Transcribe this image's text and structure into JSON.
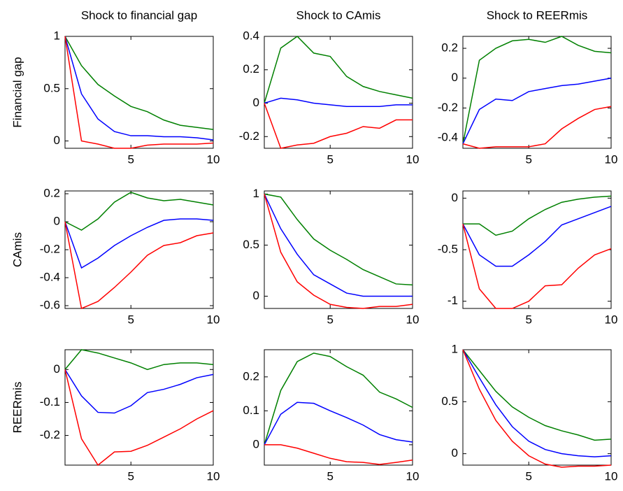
{
  "chart_data": [
    {
      "type": "line",
      "title": "Shock to financial gap",
      "ylabel": "Financial gap",
      "x": [
        1,
        2,
        3,
        4,
        5,
        6,
        7,
        8,
        9,
        10
      ],
      "xlim": [
        1,
        10
      ],
      "xticks": [
        5,
        10
      ],
      "ylim": [
        -0.07,
        1
      ],
      "yticks": [
        0,
        0.5,
        1
      ],
      "series": [
        {
          "color": "#008000",
          "values": [
            1,
            0.72,
            0.54,
            0.43,
            0.33,
            0.28,
            0.2,
            0.15,
            0.13,
            0.11
          ]
        },
        {
          "color": "#0000ff",
          "values": [
            1,
            0.45,
            0.21,
            0.09,
            0.05,
            0.05,
            0.04,
            0.04,
            0.03,
            0.01
          ]
        },
        {
          "color": "#ff0000",
          "values": [
            1,
            0.0,
            -0.03,
            -0.07,
            -0.07,
            -0.04,
            -0.03,
            -0.03,
            -0.03,
            -0.02
          ]
        }
      ]
    },
    {
      "type": "line",
      "title": "Shock to CAmis",
      "x": [
        1,
        2,
        3,
        4,
        5,
        6,
        7,
        8,
        9,
        10
      ],
      "xlim": [
        1,
        10
      ],
      "xticks": [
        5,
        10
      ],
      "ylim": [
        -0.27,
        0.4
      ],
      "yticks": [
        -0.2,
        0,
        0.2,
        0.4
      ],
      "series": [
        {
          "color": "#008000",
          "values": [
            0,
            0.33,
            0.4,
            0.3,
            0.28,
            0.16,
            0.1,
            0.07,
            0.05,
            0.03
          ]
        },
        {
          "color": "#0000ff",
          "values": [
            0,
            0.03,
            0.02,
            0,
            -0.01,
            -0.02,
            -0.02,
            -0.02,
            -0.01,
            -0.01
          ]
        },
        {
          "color": "#ff0000",
          "values": [
            0,
            -0.27,
            -0.25,
            -0.24,
            -0.2,
            -0.18,
            -0.14,
            -0.15,
            -0.1,
            -0.1
          ]
        }
      ]
    },
    {
      "type": "line",
      "title": "Shock to REERmis",
      "x": [
        1,
        2,
        3,
        4,
        5,
        6,
        7,
        8,
        9,
        10
      ],
      "xlim": [
        1,
        10
      ],
      "xticks": [
        5,
        10
      ],
      "ylim": [
        -0.47,
        0.28
      ],
      "yticks": [
        -0.4,
        -0.2,
        0,
        0.2
      ],
      "series": [
        {
          "color": "#008000",
          "values": [
            -0.44,
            0.12,
            0.2,
            0.25,
            0.26,
            0.24,
            0.28,
            0.22,
            0.18,
            0.17
          ]
        },
        {
          "color": "#0000ff",
          "values": [
            -0.44,
            -0.21,
            -0.14,
            -0.15,
            -0.09,
            -0.07,
            -0.05,
            -0.04,
            -0.02,
            0.0
          ]
        },
        {
          "color": "#ff0000",
          "values": [
            -0.44,
            -0.47,
            -0.46,
            -0.46,
            -0.46,
            -0.44,
            -0.34,
            -0.27,
            -0.21,
            -0.19
          ]
        }
      ]
    },
    {
      "type": "line",
      "ylabel": "CAmis",
      "x": [
        1,
        2,
        3,
        4,
        5,
        6,
        7,
        8,
        9,
        10
      ],
      "xlim": [
        1,
        10
      ],
      "xticks": [
        5,
        10
      ],
      "ylim": [
        -0.62,
        0.22
      ],
      "yticks": [
        -0.6,
        -0.4,
        -0.2,
        0,
        0.2
      ],
      "series": [
        {
          "color": "#008000",
          "values": [
            0,
            -0.06,
            0.02,
            0.14,
            0.21,
            0.17,
            0.15,
            0.16,
            0.14,
            0.12
          ]
        },
        {
          "color": "#0000ff",
          "values": [
            0,
            -0.33,
            -0.26,
            -0.17,
            -0.1,
            -0.04,
            0.01,
            0.02,
            0.02,
            0.01
          ]
        },
        {
          "color": "#ff0000",
          "values": [
            0,
            -0.62,
            -0.57,
            -0.47,
            -0.36,
            -0.24,
            -0.17,
            -0.15,
            -0.1,
            -0.08
          ]
        }
      ]
    },
    {
      "type": "line",
      "x": [
        1,
        2,
        3,
        4,
        5,
        6,
        7,
        8,
        9,
        10
      ],
      "xlim": [
        1,
        10
      ],
      "xticks": [
        5,
        10
      ],
      "ylim": [
        -0.12,
        1.03
      ],
      "yticks": [
        0,
        0.5,
        1
      ],
      "series": [
        {
          "color": "#008000",
          "values": [
            1,
            0.97,
            0.75,
            0.56,
            0.45,
            0.36,
            0.26,
            0.19,
            0.12,
            0.11
          ]
        },
        {
          "color": "#0000ff",
          "values": [
            1,
            0.66,
            0.41,
            0.21,
            0.12,
            0.03,
            0,
            0,
            0,
            0
          ]
        },
        {
          "color": "#ff0000",
          "values": [
            1,
            0.43,
            0.14,
            0.01,
            -0.08,
            -0.11,
            -0.12,
            -0.1,
            -0.1,
            -0.08
          ]
        }
      ]
    },
    {
      "type": "line",
      "x": [
        1,
        2,
        3,
        4,
        5,
        6,
        7,
        8,
        9,
        10
      ],
      "xlim": [
        1,
        10
      ],
      "xticks": [
        5,
        10
      ],
      "ylim": [
        -1.07,
        0.07
      ],
      "yticks": [
        -1,
        -0.5,
        0
      ],
      "series": [
        {
          "color": "#008000",
          "values": [
            -0.25,
            -0.25,
            -0.36,
            -0.32,
            -0.2,
            -0.11,
            -0.04,
            -0.01,
            0.01,
            0.02
          ]
        },
        {
          "color": "#0000ff",
          "values": [
            -0.25,
            -0.55,
            -0.66,
            -0.66,
            -0.55,
            -0.42,
            -0.26,
            -0.2,
            -0.14,
            -0.08
          ]
        },
        {
          "color": "#ff0000",
          "values": [
            -0.25,
            -0.88,
            -1.07,
            -1.07,
            -1.0,
            -0.85,
            -0.84,
            -0.68,
            -0.55,
            -0.49
          ]
        }
      ]
    },
    {
      "type": "line",
      "ylabel": "REERmis",
      "x": [
        1,
        2,
        3,
        4,
        5,
        6,
        7,
        8,
        9,
        10
      ],
      "xlim": [
        1,
        10
      ],
      "xticks": [
        5,
        10
      ],
      "ylim": [
        -0.29,
        0.06
      ],
      "yticks": [
        -0.2,
        -0.1,
        0
      ],
      "series": [
        {
          "color": "#008000",
          "values": [
            0,
            0.06,
            0.05,
            0.035,
            0.02,
            0,
            0.015,
            0.02,
            0.02,
            0.015
          ]
        },
        {
          "color": "#0000ff",
          "values": [
            0,
            -0.08,
            -0.13,
            -0.132,
            -0.11,
            -0.07,
            -0.06,
            -0.045,
            -0.025,
            -0.015
          ]
        },
        {
          "color": "#ff0000",
          "values": [
            0,
            -0.21,
            -0.29,
            -0.25,
            -0.248,
            -0.23,
            -0.205,
            -0.18,
            -0.15,
            -0.125
          ]
        }
      ]
    },
    {
      "type": "line",
      "x": [
        1,
        2,
        3,
        4,
        5,
        6,
        7,
        8,
        9,
        10
      ],
      "xlim": [
        1,
        10
      ],
      "xticks": [
        5,
        10
      ],
      "ylim": [
        -0.06,
        0.28
      ],
      "yticks": [
        0,
        0.1,
        0.2
      ],
      "series": [
        {
          "color": "#008000",
          "values": [
            0,
            0.16,
            0.245,
            0.27,
            0.26,
            0.23,
            0.205,
            0.155,
            0.135,
            0.11
          ]
        },
        {
          "color": "#0000ff",
          "values": [
            0,
            0.09,
            0.125,
            0.122,
            0.1,
            0.08,
            0.058,
            0.03,
            0.015,
            0.008
          ]
        },
        {
          "color": "#ff0000",
          "values": [
            0,
            0,
            -0.01,
            -0.025,
            -0.04,
            -0.05,
            -0.052,
            -0.058,
            -0.052,
            -0.045
          ]
        }
      ]
    },
    {
      "type": "line",
      "x": [
        1,
        2,
        3,
        4,
        5,
        6,
        7,
        8,
        9,
        10
      ],
      "xlim": [
        1,
        10
      ],
      "xticks": [
        5,
        10
      ],
      "ylim": [
        -0.11,
        1
      ],
      "yticks": [
        0,
        0.5,
        1
      ],
      "series": [
        {
          "color": "#008000",
          "values": [
            1,
            0.8,
            0.6,
            0.45,
            0.35,
            0.27,
            0.22,
            0.18,
            0.13,
            0.14
          ]
        },
        {
          "color": "#0000ff",
          "values": [
            1,
            0.73,
            0.47,
            0.26,
            0.12,
            0.04,
            0.0,
            -0.02,
            -0.03,
            -0.02
          ]
        },
        {
          "color": "#ff0000",
          "values": [
            1,
            0.62,
            0.32,
            0.12,
            -0.02,
            -0.1,
            -0.13,
            -0.12,
            -0.12,
            -0.11
          ]
        }
      ]
    }
  ]
}
